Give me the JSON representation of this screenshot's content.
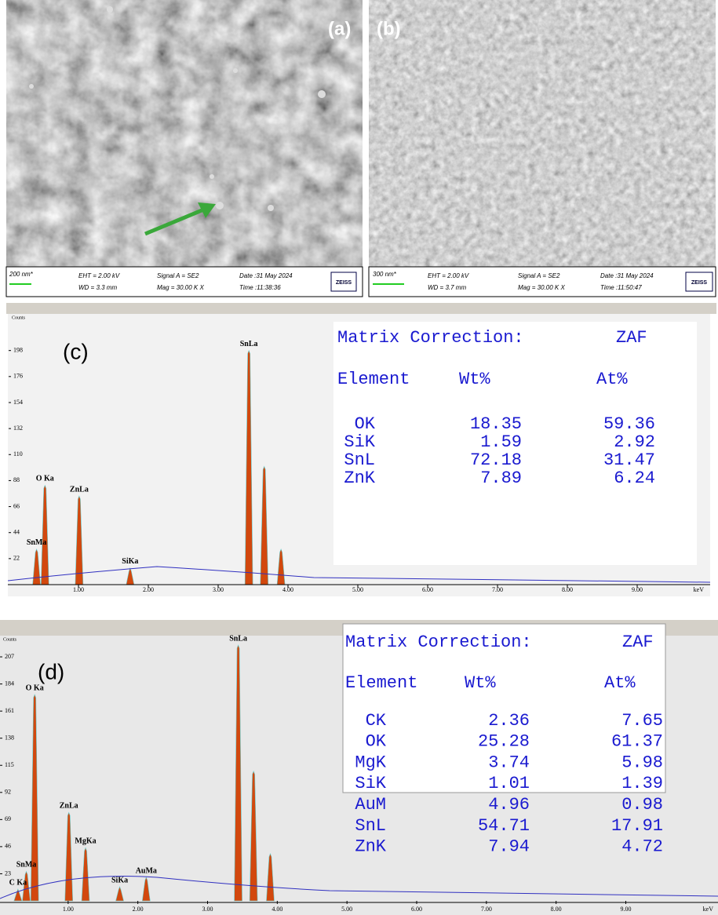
{
  "panels": [
    {
      "label": "(a)",
      "scale": "200 nm*",
      "eht": "EHT = 2.00 kV",
      "wd": "WD = 3.3 mm",
      "signal": "Signal A = SE2",
      "mag": "Mag = 30.00 K X",
      "date": "Date :31 May 2024",
      "time": "Time :11:38:36",
      "logo": "ZEISS"
    },
    {
      "label": "(b)",
      "scale": "300 nm*",
      "eht": "EHT = 2.00 kV",
      "wd": "WD = 3.7 mm",
      "signal": "Signal A = SE2",
      "mag": "Mag = 30.00 K X",
      "date": "Date :31 May 2024",
      "time": "Time :11:50:47",
      "logo": "ZEISS"
    }
  ],
  "chart_data": [
    {
      "type": "spectrum",
      "label": "(c)",
      "ylabel": "Counts",
      "xlabel": "keV",
      "xlim": [
        0,
        10
      ],
      "ylim": [
        0,
        225
      ],
      "yticks": [
        22,
        44,
        66,
        88,
        110,
        132,
        154,
        176,
        198
      ],
      "xticks": [
        {
          "value": 1,
          "label": "1.00"
        },
        {
          "value": 2,
          "label": "2.00"
        },
        {
          "value": 3,
          "label": "3.00"
        },
        {
          "value": 4,
          "label": "4.00"
        },
        {
          "value": 5,
          "label": "5.00"
        },
        {
          "value": 6,
          "label": "6.00"
        },
        {
          "value": 7,
          "label": "7.00"
        },
        {
          "value": 8,
          "label": "8.00"
        },
        {
          "value": 9,
          "label": "9.00"
        }
      ],
      "color": "#d2480e",
      "peaks": {
        "labels": [
          "SnMa",
          "O Ka",
          "ZnLa",
          "SiKa",
          "SnLa",
          null,
          null
        ],
        "x": [
          0.4,
          0.52,
          1.01,
          1.74,
          3.44,
          3.66,
          3.9
        ],
        "values": [
          30,
          84,
          75,
          14,
          198,
          100,
          30
        ]
      },
      "table": {
        "title": "Matrix Correction:",
        "method": "ZAF",
        "columns": [
          "Element",
          "Wt%",
          "At%"
        ],
        "rows": [
          [
            "OK",
            "18.35",
            "59.36"
          ],
          [
            "SiK",
            "1.59",
            "2.92"
          ],
          [
            "SnL",
            "72.18",
            "31.47"
          ],
          [
            "ZnK",
            "7.89",
            "6.24"
          ]
        ]
      }
    },
    {
      "type": "spectrum",
      "label": "(d)",
      "ylabel": "Counts",
      "xlabel": "keV",
      "xlim": [
        0,
        10.3
      ],
      "ylim": [
        0,
        225
      ],
      "yticks": [
        23,
        46,
        69,
        92,
        115,
        138,
        161,
        184,
        207
      ],
      "xticks": [
        {
          "value": 1,
          "label": "1.00"
        },
        {
          "value": 2,
          "label": "2.00"
        },
        {
          "value": 3,
          "label": "3.00"
        },
        {
          "value": 4,
          "label": "4.00"
        },
        {
          "value": 5,
          "label": "5.00"
        },
        {
          "value": 6,
          "label": "6.00"
        },
        {
          "value": 7,
          "label": "7.00"
        },
        {
          "value": 8,
          "label": "8.00"
        },
        {
          "value": 9,
          "label": "9.00"
        }
      ],
      "color": "#d2480e",
      "peaks": {
        "labels": [
          "C Ka",
          "SnMa",
          "O Ka",
          "ZnLa",
          "MgKa",
          "SiKa",
          "AuMa",
          "SnLa",
          null,
          null
        ],
        "x": [
          0.28,
          0.4,
          0.52,
          1.01,
          1.25,
          1.74,
          2.12,
          3.44,
          3.66,
          3.9
        ],
        "values": [
          10,
          25,
          175,
          75,
          45,
          12,
          20,
          217,
          110,
          40
        ]
      },
      "table": {
        "title": "Matrix Correction:",
        "method": "ZAF",
        "columns": [
          "Element",
          "Wt%",
          "At%"
        ],
        "rows": [
          [
            "CK",
            "2.36",
            "7.65"
          ],
          [
            "OK",
            "25.28",
            "61.37"
          ],
          [
            "MgK",
            "3.74",
            "5.98"
          ],
          [
            "SiK",
            "1.01",
            "1.39"
          ],
          [
            "AuM",
            "4.96",
            "0.98"
          ],
          [
            "SnL",
            "54.71",
            "17.91"
          ],
          [
            "ZnK",
            "7.94",
            "4.72"
          ]
        ]
      }
    }
  ]
}
